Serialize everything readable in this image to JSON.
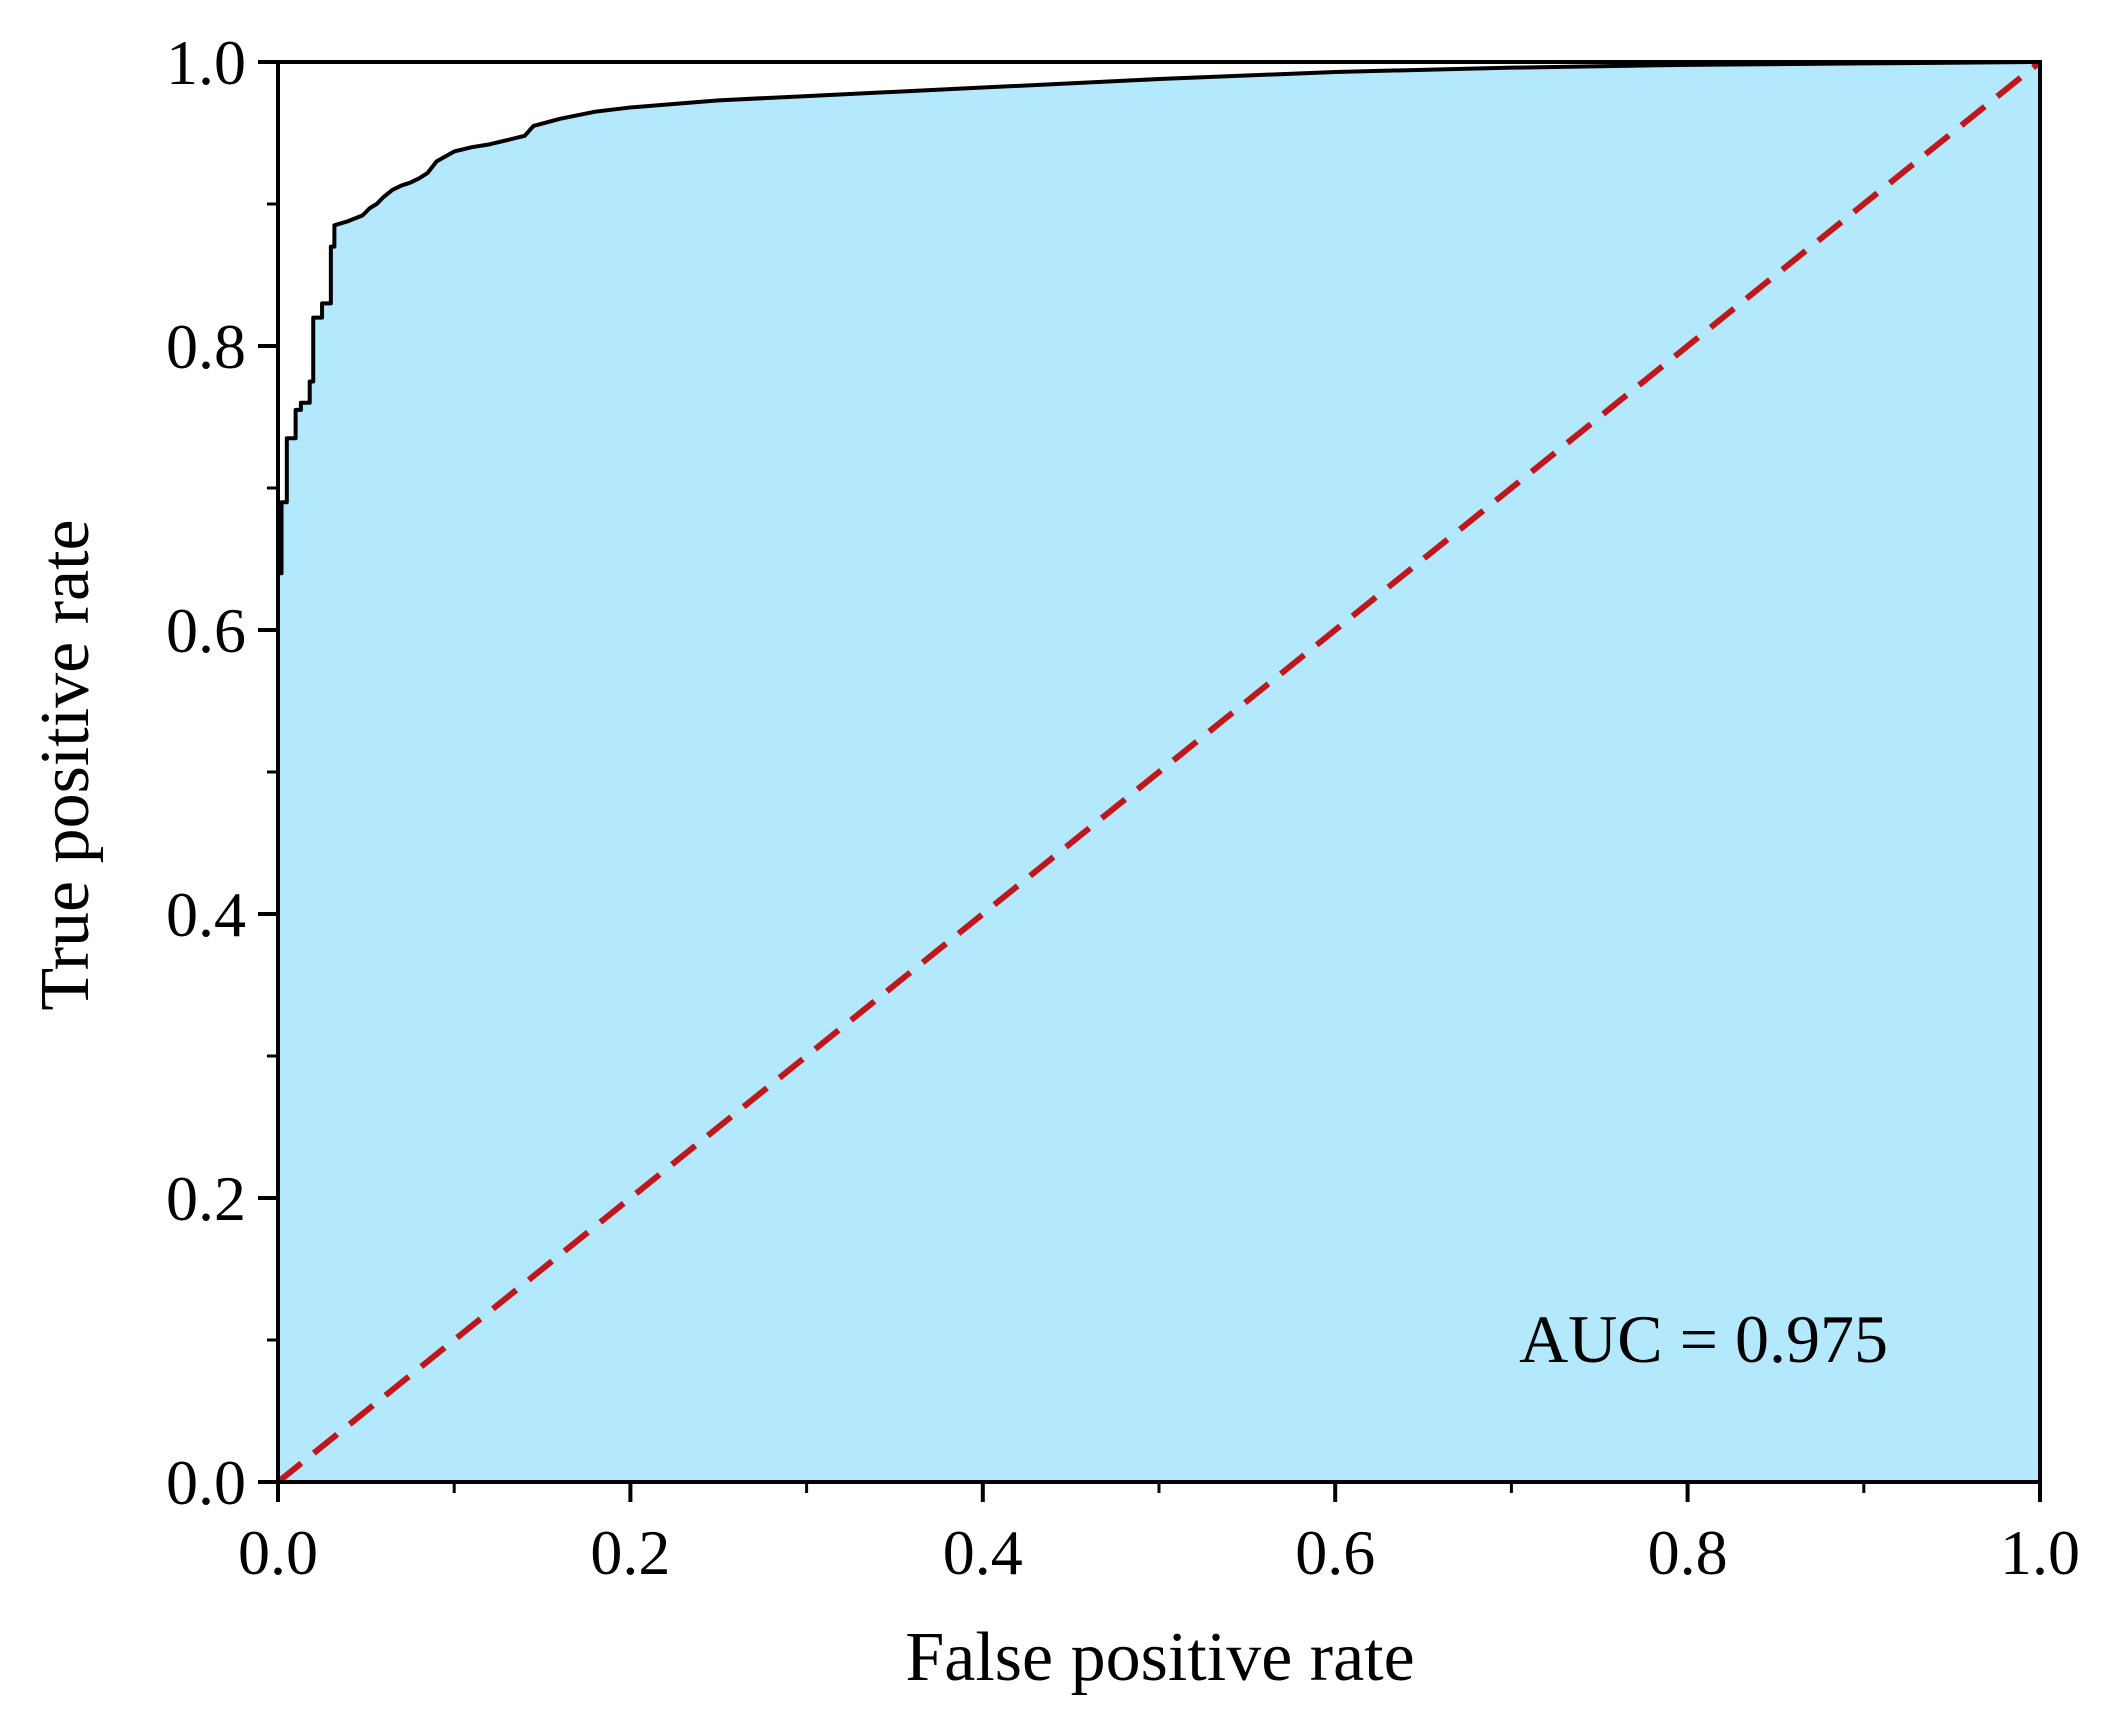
{
  "chart_data": {
    "type": "area",
    "xlabel": "False positive rate",
    "ylabel": "True positive rate",
    "xlim": [
      0.0,
      1.0
    ],
    "ylim": [
      0.0,
      1.0
    ],
    "x_ticks": [
      "0.0",
      "0.2",
      "0.4",
      "0.6",
      "0.8",
      "1.0"
    ],
    "y_ticks": [
      "0.0",
      "0.2",
      "0.4",
      "0.6",
      "0.8",
      "1.0"
    ],
    "grid": false,
    "annotation": "AUC = 0.975",
    "colors": {
      "fill": "#b4e8fc",
      "curve": "#000000",
      "diagonal": "#c0171d"
    },
    "series": [
      {
        "style": "solid",
        "x": [
          0.0,
          0.0,
          0.002,
          0.002,
          0.005,
          0.005,
          0.01,
          0.01,
          0.013,
          0.013,
          0.018,
          0.018,
          0.02,
          0.02,
          0.025,
          0.025,
          0.03,
          0.03,
          0.032,
          0.032,
          0.04,
          0.048,
          0.052,
          0.056,
          0.06,
          0.065,
          0.07,
          0.075,
          0.08,
          0.085,
          0.09,
          0.1,
          0.11,
          0.12,
          0.14,
          0.145,
          0.16,
          0.18,
          0.2,
          0.22,
          0.25,
          0.3,
          0.4,
          0.5,
          0.6,
          0.7,
          0.8,
          0.9,
          1.0
        ],
        "y": [
          0.0,
          0.64,
          0.64,
          0.69,
          0.69,
          0.735,
          0.735,
          0.755,
          0.755,
          0.76,
          0.76,
          0.775,
          0.775,
          0.82,
          0.82,
          0.83,
          0.83,
          0.87,
          0.87,
          0.885,
          0.888,
          0.892,
          0.897,
          0.9,
          0.905,
          0.91,
          0.913,
          0.915,
          0.918,
          0.922,
          0.93,
          0.937,
          0.94,
          0.942,
          0.948,
          0.955,
          0.96,
          0.965,
          0.968,
          0.97,
          0.973,
          0.976,
          0.982,
          0.988,
          0.993,
          0.996,
          0.998,
          0.999,
          1.0
        ]
      },
      {
        "style": "dashed",
        "x": [
          0.0,
          1.0
        ],
        "y": [
          0.0,
          1.0
        ]
      }
    ]
  }
}
